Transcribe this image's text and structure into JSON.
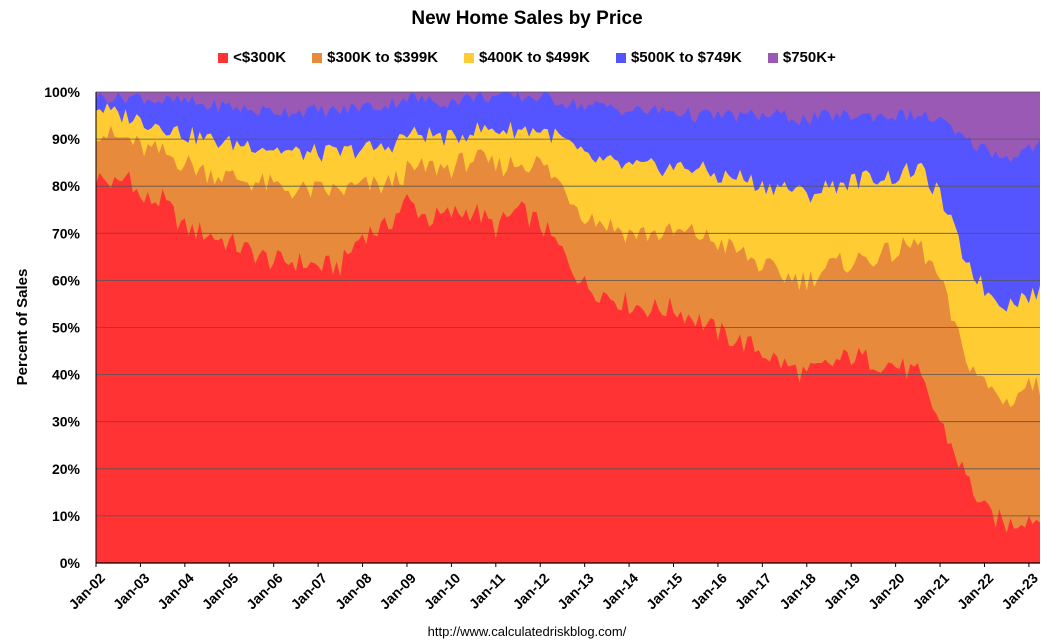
{
  "chart_data": {
    "type": "area",
    "stacked": true,
    "normalized": "percent",
    "title": "New Home Sales by Price",
    "ylabel": "Percent of Sales",
    "xlabel": "",
    "ylim": [
      0,
      100
    ],
    "yticks": [
      "0%",
      "10%",
      "20%",
      "30%",
      "40%",
      "50%",
      "60%",
      "70%",
      "80%",
      "90%",
      "100%"
    ],
    "xticks": [
      "Jan-02",
      "Jan-03",
      "Jan-04",
      "Jan-05",
      "Jan-06",
      "Jan-07",
      "Jan-08",
      "Jan-09",
      "Jan-10",
      "Jan-11",
      "Jan-12",
      "Jan-13",
      "Jan-14",
      "Jan-15",
      "Jan-16",
      "Jan-17",
      "Jan-18",
      "Jan-19",
      "Jan-20",
      "Jan-21",
      "Jan-22",
      "Jan-23"
    ],
    "x_range": [
      "Jan-02",
      "Apr-23"
    ],
    "grid": "horizontal",
    "legend_position": "top",
    "source": "http://www.calculatedriskblog.com/",
    "series": [
      {
        "name": "<$300K",
        "color": "#ff3333",
        "cumulative_top": [
          [
            "2002-01",
            82
          ],
          [
            "2002-07",
            80
          ],
          [
            "2002-10",
            83
          ],
          [
            "2003-01",
            77
          ],
          [
            "2003-07",
            77
          ],
          [
            "2004-01",
            71
          ],
          [
            "2004-07",
            70
          ],
          [
            "2005-01",
            68
          ],
          [
            "2005-07",
            66
          ],
          [
            "2006-01",
            64
          ],
          [
            "2006-07",
            64
          ],
          [
            "2007-01",
            63
          ],
          [
            "2007-07",
            63
          ],
          [
            "2008-01",
            70
          ],
          [
            "2008-07",
            71
          ],
          [
            "2009-01",
            77
          ],
          [
            "2009-07",
            73
          ],
          [
            "2010-01",
            74
          ],
          [
            "2010-07",
            75
          ],
          [
            "2011-01",
            71
          ],
          [
            "2011-07",
            75
          ],
          [
            "2012-01",
            72
          ],
          [
            "2012-07",
            66
          ],
          [
            "2013-01",
            59
          ],
          [
            "2013-07",
            57
          ],
          [
            "2014-01",
            55
          ],
          [
            "2014-07",
            54
          ],
          [
            "2015-01",
            54
          ],
          [
            "2015-07",
            52
          ],
          [
            "2016-01",
            49
          ],
          [
            "2016-07",
            47
          ],
          [
            "2017-01",
            45
          ],
          [
            "2017-07",
            42
          ],
          [
            "2018-01",
            40
          ],
          [
            "2018-07",
            42
          ],
          [
            "2019-01",
            44
          ],
          [
            "2019-07",
            43
          ],
          [
            "2020-01",
            42
          ],
          [
            "2020-07",
            40
          ],
          [
            "2021-01",
            30
          ],
          [
            "2021-07",
            20
          ],
          [
            "2022-01",
            11
          ],
          [
            "2022-07",
            8
          ],
          [
            "2023-01",
            10
          ],
          [
            "2023-04",
            9
          ]
        ]
      },
      {
        "name": "$300K to $399K",
        "color": "#e88a3c",
        "cumulative_top": [
          [
            "2002-01",
            92
          ],
          [
            "2002-07",
            90
          ],
          [
            "2002-10",
            90
          ],
          [
            "2003-01",
            88
          ],
          [
            "2003-07",
            87
          ],
          [
            "2004-01",
            85
          ],
          [
            "2004-07",
            83
          ],
          [
            "2005-01",
            82
          ],
          [
            "2005-07",
            81
          ],
          [
            "2006-01",
            80
          ],
          [
            "2006-07",
            79
          ],
          [
            "2007-01",
            79
          ],
          [
            "2007-07",
            79
          ],
          [
            "2008-01",
            80
          ],
          [
            "2008-07",
            80
          ],
          [
            "2009-01",
            83
          ],
          [
            "2009-07",
            84
          ],
          [
            "2010-01",
            84
          ],
          [
            "2010-07",
            86
          ],
          [
            "2011-01",
            84
          ],
          [
            "2011-07",
            85
          ],
          [
            "2012-01",
            85
          ],
          [
            "2012-07",
            80
          ],
          [
            "2013-01",
            74
          ],
          [
            "2013-07",
            72
          ],
          [
            "2014-01",
            70
          ],
          [
            "2014-07",
            70
          ],
          [
            "2015-01",
            70
          ],
          [
            "2015-07",
            70
          ],
          [
            "2016-01",
            68
          ],
          [
            "2016-07",
            66
          ],
          [
            "2017-01",
            63
          ],
          [
            "2017-07",
            61
          ],
          [
            "2018-01",
            60
          ],
          [
            "2018-07",
            63
          ],
          [
            "2019-01",
            64
          ],
          [
            "2019-07",
            65
          ],
          [
            "2020-01",
            66
          ],
          [
            "2020-07",
            68
          ],
          [
            "2021-01",
            60
          ],
          [
            "2021-07",
            45
          ],
          [
            "2022-01",
            38
          ],
          [
            "2022-07",
            34
          ],
          [
            "2023-01",
            38
          ],
          [
            "2023-04",
            37
          ]
        ]
      },
      {
        "name": "$400K to $499K",
        "color": "#ffcc33",
        "cumulative_top": [
          [
            "2002-01",
            97
          ],
          [
            "2002-07",
            95
          ],
          [
            "2002-10",
            95
          ],
          [
            "2003-01",
            94
          ],
          [
            "2003-07",
            93
          ],
          [
            "2004-01",
            91
          ],
          [
            "2004-07",
            90
          ],
          [
            "2005-01",
            89
          ],
          [
            "2005-07",
            89
          ],
          [
            "2006-01",
            88
          ],
          [
            "2006-07",
            87
          ],
          [
            "2007-01",
            87
          ],
          [
            "2007-07",
            87
          ],
          [
            "2008-01",
            88
          ],
          [
            "2008-07",
            88
          ],
          [
            "2009-01",
            91
          ],
          [
            "2009-07",
            91
          ],
          [
            "2010-01",
            90
          ],
          [
            "2010-07",
            92
          ],
          [
            "2011-01",
            92
          ],
          [
            "2011-07",
            92
          ],
          [
            "2012-01",
            92
          ],
          [
            "2012-07",
            90
          ],
          [
            "2013-01",
            86
          ],
          [
            "2013-07",
            85
          ],
          [
            "2014-01",
            84
          ],
          [
            "2014-07",
            84
          ],
          [
            "2015-01",
            84
          ],
          [
            "2015-07",
            84
          ],
          [
            "2016-01",
            82
          ],
          [
            "2016-07",
            82
          ],
          [
            "2017-01",
            80
          ],
          [
            "2017-07",
            80
          ],
          [
            "2018-01",
            78
          ],
          [
            "2018-07",
            80
          ],
          [
            "2019-01",
            81
          ],
          [
            "2019-07",
            82
          ],
          [
            "2020-01",
            82
          ],
          [
            "2020-07",
            84
          ],
          [
            "2021-01",
            78
          ],
          [
            "2021-07",
            66
          ],
          [
            "2022-01",
            58
          ],
          [
            "2022-07",
            55
          ],
          [
            "2023-01",
            57
          ],
          [
            "2023-04",
            57
          ]
        ]
      },
      {
        "name": "$500K to $749K",
        "color": "#5555ff",
        "cumulative_top": [
          [
            "2002-01",
            99
          ],
          [
            "2002-07",
            99
          ],
          [
            "2002-10",
            99
          ],
          [
            "2003-01",
            99
          ],
          [
            "2003-07",
            98
          ],
          [
            "2004-01",
            98
          ],
          [
            "2004-07",
            97
          ],
          [
            "2005-01",
            97
          ],
          [
            "2005-07",
            96
          ],
          [
            "2006-01",
            96
          ],
          [
            "2006-07",
            96
          ],
          [
            "2007-01",
            96
          ],
          [
            "2007-07",
            96
          ],
          [
            "2008-01",
            97
          ],
          [
            "2008-07",
            97
          ],
          [
            "2009-01",
            99
          ],
          [
            "2009-07",
            98
          ],
          [
            "2010-01",
            98
          ],
          [
            "2010-07",
            99
          ],
          [
            "2011-01",
            99
          ],
          [
            "2011-07",
            99
          ],
          [
            "2012-01",
            99
          ],
          [
            "2012-07",
            98
          ],
          [
            "2013-01",
            97
          ],
          [
            "2013-07",
            97
          ],
          [
            "2014-01",
            96
          ],
          [
            "2014-07",
            96
          ],
          [
            "2015-01",
            96
          ],
          [
            "2015-07",
            95
          ],
          [
            "2016-01",
            95
          ],
          [
            "2016-07",
            95
          ],
          [
            "2017-01",
            95
          ],
          [
            "2017-07",
            95
          ],
          [
            "2018-01",
            94
          ],
          [
            "2018-07",
            95
          ],
          [
            "2019-01",
            95
          ],
          [
            "2019-07",
            95
          ],
          [
            "2020-01",
            95
          ],
          [
            "2020-07",
            95
          ],
          [
            "2021-01",
            94
          ],
          [
            "2021-07",
            90
          ],
          [
            "2022-01",
            88
          ],
          [
            "2022-07",
            86
          ],
          [
            "2023-01",
            88
          ],
          [
            "2023-04",
            89
          ]
        ]
      },
      {
        "name": "$750K+",
        "color": "#9b59b6",
        "cumulative_top": [
          [
            "2002-01",
            100
          ],
          [
            "2023-04",
            100
          ]
        ]
      }
    ]
  }
}
